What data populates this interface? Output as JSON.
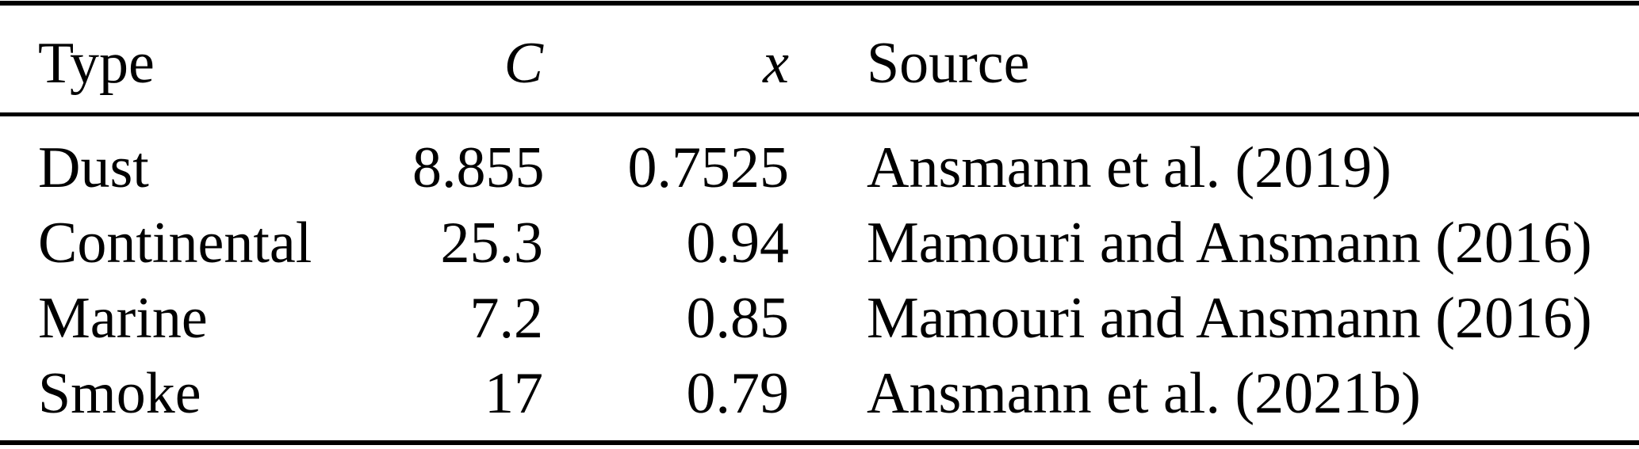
{
  "table": {
    "style": {
      "background": "#ffffff",
      "text_color": "#000000",
      "rule_color": "#000000"
    },
    "columns": [
      {
        "label": "Type",
        "align": "left",
        "italic": false
      },
      {
        "label": "C",
        "align": "right",
        "italic": true
      },
      {
        "label": "x",
        "align": "right",
        "italic": true
      },
      {
        "label": "Source",
        "align": "left",
        "italic": false
      }
    ],
    "rows": [
      {
        "type": "Dust",
        "c": "8.855",
        "x": "0.7525",
        "source": "Ansmann et al. (2019)"
      },
      {
        "type": "Continental",
        "c": "25.3",
        "x": "0.94",
        "source": "Mamouri and Ansmann (2016)"
      },
      {
        "type": "Marine",
        "c": "7.2",
        "x": "0.85",
        "source": "Mamouri and Ansmann (2016)"
      },
      {
        "type": "Smoke",
        "c": "17",
        "x": "0.79",
        "source": "Ansmann et al. (2021b)"
      }
    ]
  },
  "chart_data": {
    "type": "table",
    "title": "",
    "columns": [
      "Type",
      "C",
      "x",
      "Source"
    ],
    "rows": [
      [
        "Dust",
        8.855,
        0.7525,
        "Ansmann et al. (2019)"
      ],
      [
        "Continental",
        25.3,
        0.94,
        "Mamouri and Ansmann (2016)"
      ],
      [
        "Marine",
        7.2,
        0.85,
        "Mamouri and Ansmann (2016)"
      ],
      [
        "Smoke",
        17,
        0.79,
        "Ansmann et al. (2021b)"
      ]
    ]
  }
}
